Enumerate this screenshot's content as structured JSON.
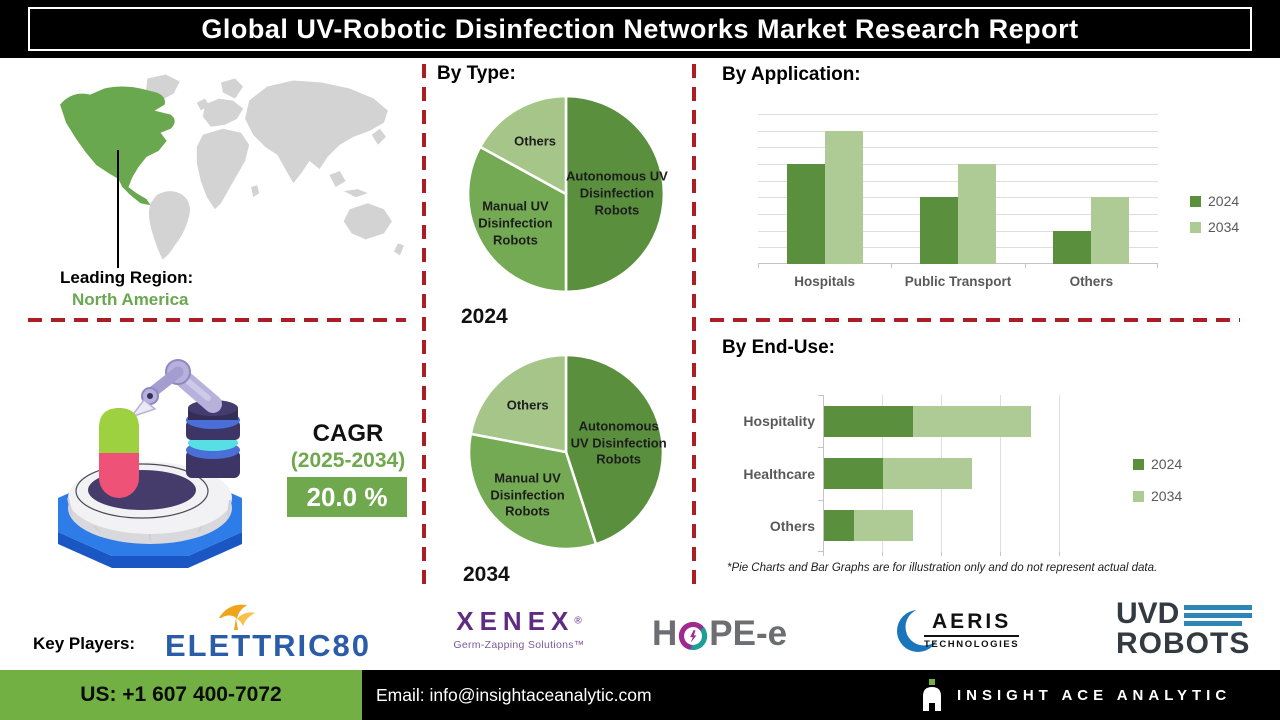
{
  "title": "Global UV-Robotic Disinfection Networks Market Research Report",
  "map": {
    "leading_region_label": "Leading Region:",
    "leading_region_value": "North America"
  },
  "cagr": {
    "label": "CAGR",
    "period": "(2025-2034)",
    "value": "20.0 %"
  },
  "sections": {
    "by_type": {
      "heading": "By Type:"
    },
    "by_application": {
      "heading": "By Application:"
    },
    "by_end_use": {
      "heading": "By End-Use:"
    }
  },
  "footnote": "*Pie Charts and Bar Graphs are for illustration only and do not represent actual data.",
  "key_players": {
    "label": "Key Players:",
    "elettric80": {
      "name": "ELETTRIC80"
    },
    "xenex": {
      "name": "XENEX",
      "reg": "®",
      "tagline": "Germ-Zapping Solutions™"
    },
    "hope_e": {
      "part1": "H",
      "part2": "PE-e"
    },
    "aeris": {
      "name": "AERIS",
      "sub": "TECHNOLOGIES"
    },
    "uvd": {
      "line1": "UVD",
      "line2": "ROBOTS"
    }
  },
  "footer": {
    "phone": "US: +1 607 400-7072",
    "email": "Email: info@insightaceanalytic.com",
    "brand": "INSIGHT ACE ANALYTIC"
  },
  "colors": {
    "green_dark": "#5a8f3e",
    "green_mid": "#74aa53",
    "green_light_pie": "#a6c689",
    "green_light_bar": "#aecb95",
    "divider_red": "#aa1f23",
    "map_green": "#6aa84f",
    "map_grey": "#d3d3d3",
    "cagr_green": "#70a84e",
    "footer_green": "#72b043"
  },
  "chart_data": [
    {
      "id": "type2024",
      "type": "pie",
      "caption": "2024",
      "legend_position": "none",
      "slices": [
        {
          "label": "Autonomous UV Disinfection Robots",
          "value": 50,
          "color": "#5a8f3e",
          "label_r": 0.52,
          "label_width": 120
        },
        {
          "label": "Manual UV Disinfection Robots",
          "value": 33,
          "color": "#74aa53",
          "label_r": 0.6,
          "label_width": 118
        },
        {
          "label": "Others",
          "value": 17,
          "color": "#a6c689",
          "label_r": 0.62,
          "label_width": 80
        }
      ]
    },
    {
      "id": "type2034",
      "type": "pie",
      "caption": "2034",
      "legend_position": "none",
      "slices": [
        {
          "label": "Autonomous UV Disinfection Robots",
          "value": 45,
          "color": "#5a8f3e",
          "label_r": 0.55,
          "label_width": 98
        },
        {
          "label": "Manual UV Disinfection Robots",
          "value": 33,
          "color": "#74aa53",
          "label_r": 0.6,
          "label_width": 118
        },
        {
          "label": "Others",
          "value": 22,
          "color": "#a6c689",
          "label_r": 0.62,
          "label_width": 80
        }
      ]
    },
    {
      "id": "application",
      "type": "bar",
      "title": "By Application:",
      "categories": [
        "Hospitals",
        "Public Transport",
        "Others"
      ],
      "series": [
        {
          "name": "2024",
          "color": "#5a8f3e",
          "values": [
            60,
            40,
            20
          ]
        },
        {
          "name": "2034",
          "color": "#aecb95",
          "values": [
            80,
            60,
            40
          ]
        }
      ],
      "ylim": [
        0,
        90
      ],
      "grid_step": 10,
      "grid": true,
      "legend_position": "right",
      "axis_tick_labels": "none"
    },
    {
      "id": "enduse",
      "type": "hstacked",
      "title": "By End-Use:",
      "categories": [
        "Hospitality",
        "Healthcare",
        "Others"
      ],
      "series": [
        {
          "name": "2024",
          "color": "#5a8f3e",
          "values": [
            30,
            20,
            10
          ]
        },
        {
          "name": "2034",
          "color": "#aecb95",
          "values": [
            40,
            30,
            20
          ]
        }
      ],
      "xlim": [
        0,
        80
      ],
      "grid_step": 20,
      "grid": true,
      "legend_position": "right",
      "axis_tick_labels": "none"
    }
  ]
}
